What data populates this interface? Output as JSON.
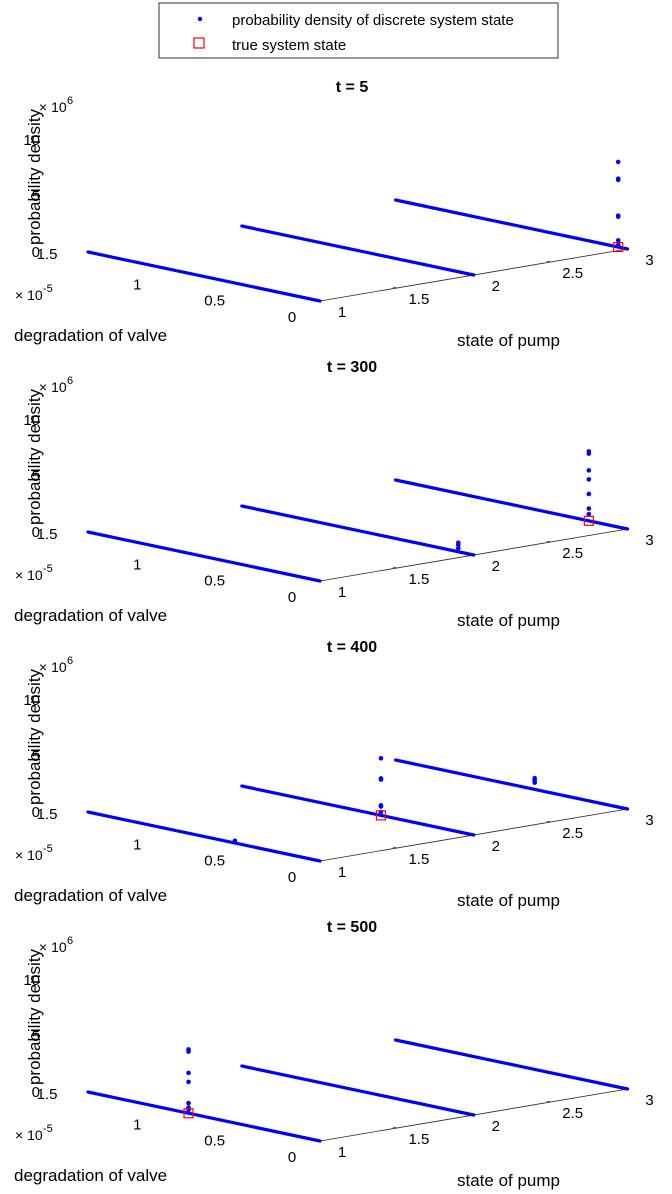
{
  "legend": {
    "entries": [
      {
        "label": "probability density of discrete system state",
        "marker": "dot",
        "color": "#0000ff"
      },
      {
        "label": "true system state",
        "marker": "square",
        "color": "#ff0000"
      }
    ]
  },
  "axes": {
    "zlabel": "probability density",
    "xlabel": "degradation of valve",
    "ylabel": "state of pump",
    "z_exponent": "× 10",
    "z_exponent_power": "6",
    "x_exponent": "× 10",
    "x_exponent_power": "-5",
    "z_ticks": [
      "10",
      "5",
      "0"
    ],
    "x_ticks": [
      "1.5",
      "1",
      "0.5",
      "0"
    ],
    "y_ticks": [
      "1",
      "1.5",
      "2",
      "2.5",
      "3"
    ]
  },
  "chart_data": [
    {
      "type": "scatter",
      "title": "t = 5",
      "xlabel": "degradation of valve",
      "ylabel": "state of pump",
      "zlabel": "probability density",
      "xlim": [
        0,
        1.5e-05
      ],
      "ylim": [
        1,
        3
      ],
      "zlim": [
        0,
        10000000.0
      ],
      "grid": false,
      "legend": "top",
      "series": [
        {
          "name": "probability density of discrete system state",
          "points": [
            [
              6e-07,
              3,
              7600000.0
            ],
            [
              6e-07,
              3,
              6100000.0
            ],
            [
              6e-07,
              3,
              6000000.0
            ],
            [
              6e-07,
              3,
              2800000.0
            ],
            [
              6e-07,
              3,
              2700000.0
            ],
            [
              6e-07,
              3,
              600000.0
            ],
            [
              6e-07,
              3,
              200000.0
            ]
          ]
        },
        {
          "name": "true system state",
          "points": [
            [
              6e-07,
              3,
              0
            ]
          ]
        }
      ]
    },
    {
      "type": "scatter",
      "title": "t = 300",
      "xlabel": "degradation of valve",
      "ylabel": "state of pump",
      "zlabel": "probability density",
      "xlim": [
        0,
        1.5e-05
      ],
      "ylim": [
        1,
        3
      ],
      "zlim": [
        0,
        10000000.0
      ],
      "grid": false,
      "legend": "top",
      "series": [
        {
          "name": "probability density of discrete system state",
          "points": [
            [
              1e-06,
              2,
              800000.0
            ],
            [
              1e-06,
              2,
              600000.0
            ],
            [
              1e-06,
              2,
              300000.0
            ],
            [
              2.5e-06,
              3,
              6200000.0
            ],
            [
              2.5e-06,
              3,
              6000000.0
            ],
            [
              2.5e-06,
              3,
              4500000.0
            ],
            [
              2.5e-06,
              3,
              3700000.0
            ],
            [
              2.5e-06,
              3,
              2400000.0
            ],
            [
              2.5e-06,
              3,
              1100000.0
            ],
            [
              2.5e-06,
              3,
              600000.0
            ]
          ]
        },
        {
          "name": "true system state",
          "points": [
            [
              2.5e-06,
              3,
              0
            ]
          ]
        }
      ]
    },
    {
      "type": "scatter",
      "title": "t = 400",
      "xlabel": "degradation of valve",
      "ylabel": "state of pump",
      "zlabel": "probability density",
      "xlim": [
        0,
        1.5e-05
      ],
      "ylim": [
        1,
        3
      ],
      "zlim": [
        0,
        10000000.0
      ],
      "grid": false,
      "legend": "top",
      "series": [
        {
          "name": "probability density of discrete system state",
          "points": [
            [
              5.5e-06,
              1,
              200000.0
            ],
            [
              6e-06,
              2,
              5100000.0
            ],
            [
              6e-06,
              2,
              3300000.0
            ],
            [
              6e-06,
              2,
              3200000.0
            ],
            [
              6e-06,
              2,
              900000.0
            ],
            [
              6e-06,
              2,
              800000.0
            ],
            [
              6e-06,
              2,
              300000.0
            ],
            [
              6e-06,
              3,
              1000000.0
            ],
            [
              6e-06,
              3,
              800000.0
            ],
            [
              6e-06,
              3,
              600000.0
            ]
          ]
        },
        {
          "name": "true system state",
          "points": [
            [
              6e-06,
              2,
              0
            ]
          ]
        }
      ]
    },
    {
      "type": "scatter",
      "title": "t = 500",
      "xlabel": "degradation of valve",
      "ylabel": "state of pump",
      "zlabel": "probability density",
      "xlim": [
        0,
        1.5e-05
      ],
      "ylim": [
        1,
        3
      ],
      "zlim": [
        0,
        10000000.0
      ],
      "grid": false,
      "legend": "top",
      "series": [
        {
          "name": "probability density of discrete system state",
          "points": [
            [
              8.5e-06,
              1,
              5700000.0
            ],
            [
              8.5e-06,
              1,
              5500000.0
            ],
            [
              8.5e-06,
              1,
              3600000.0
            ],
            [
              8.5e-06,
              1,
              2800000.0
            ],
            [
              8.5e-06,
              1,
              900000.0
            ],
            [
              8.5e-06,
              1,
              500000.0
            ],
            [
              8.5e-06,
              1,
              300000.0
            ]
          ]
        },
        {
          "name": "true system state",
          "points": [
            [
              8.5e-06,
              1,
              0
            ]
          ]
        }
      ]
    }
  ]
}
